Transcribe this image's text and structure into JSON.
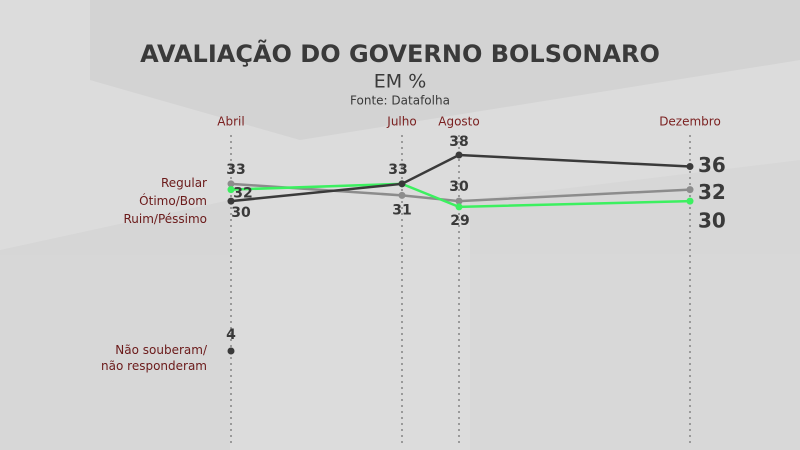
{
  "chart_data": {
    "type": "line",
    "title": "AVALIAÇÃO DO GOVERNO BOLSONARO",
    "subtitle": "EM %",
    "source": "Fonte: Datafolha",
    "categories": [
      "Abril",
      "Julho",
      "Agosto",
      "Dezembro"
    ],
    "series": [
      {
        "name": "Regular",
        "color": "#8c8c8c",
        "values": [
          33,
          31,
          30,
          32
        ]
      },
      {
        "name": "Ótimo/Bom",
        "color": "#3cf060",
        "values": [
          32,
          33,
          29,
          30
        ]
      },
      {
        "name": "Ruim/Péssimo",
        "color": "#3a3a3a",
        "values": [
          30,
          33,
          38,
          36
        ]
      },
      {
        "name": "Não souberam/\nnão responderam",
        "color": "#3a3a3a",
        "values": [
          4,
          null,
          null,
          null
        ]
      }
    ]
  }
}
